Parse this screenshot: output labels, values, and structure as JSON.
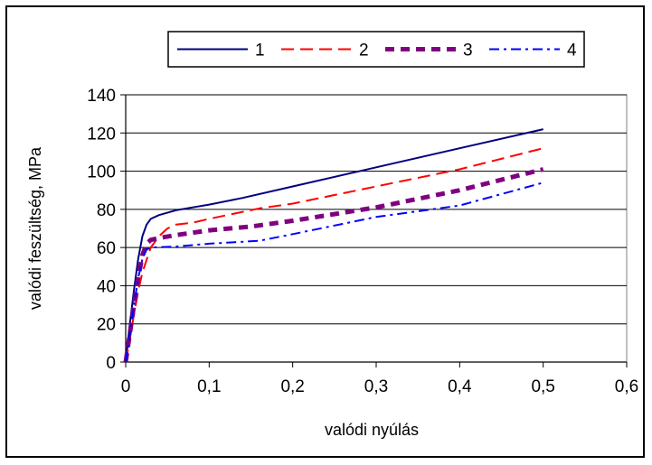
{
  "chart_data": {
    "type": "line",
    "xlabel": "valódi nyúlás",
    "ylabel": "valódi feszültség, MPa",
    "xlim": [
      0,
      0.6
    ],
    "ylim": [
      0,
      140
    ],
    "x_ticks": [
      "0",
      "0,1",
      "0,2",
      "0,3",
      "0,4",
      "0,5",
      "0,6"
    ],
    "y_ticks": [
      "0",
      "20",
      "40",
      "60",
      "80",
      "100",
      "120",
      "140"
    ],
    "grid": "horizontal",
    "legend_position": "top",
    "series": [
      {
        "name": "1",
        "color": "#000080",
        "style": "solid",
        "points": [
          [
            0,
            0
          ],
          [
            0.005,
            20
          ],
          [
            0.01,
            38
          ],
          [
            0.015,
            54
          ],
          [
            0.02,
            66
          ],
          [
            0.025,
            72
          ],
          [
            0.03,
            75
          ],
          [
            0.04,
            77
          ],
          [
            0.06,
            79.5
          ],
          [
            0.08,
            81
          ],
          [
            0.1,
            82.5
          ],
          [
            0.14,
            86
          ],
          [
            0.2,
            92
          ],
          [
            0.3,
            102
          ],
          [
            0.4,
            112
          ],
          [
            0.5,
            122
          ]
        ]
      },
      {
        "name": "2",
        "color": "#ff0000",
        "style": "dashed",
        "points": [
          [
            0,
            0
          ],
          [
            0.005,
            12
          ],
          [
            0.01,
            25
          ],
          [
            0.015,
            37
          ],
          [
            0.02,
            47
          ],
          [
            0.03,
            60
          ],
          [
            0.04,
            66
          ],
          [
            0.05,
            70
          ],
          [
            0.06,
            72
          ],
          [
            0.08,
            73
          ],
          [
            0.1,
            75
          ],
          [
            0.16,
            80.5
          ],
          [
            0.2,
            83
          ],
          [
            0.3,
            92
          ],
          [
            0.4,
            101
          ],
          [
            0.5,
            112
          ]
        ]
      },
      {
        "name": "3",
        "color": "#800080",
        "style": "thick-dashed",
        "points": [
          [
            0,
            0
          ],
          [
            0.005,
            15
          ],
          [
            0.01,
            30
          ],
          [
            0.015,
            44
          ],
          [
            0.02,
            56
          ],
          [
            0.025,
            62
          ],
          [
            0.03,
            64
          ],
          [
            0.04,
            65
          ],
          [
            0.06,
            66.5
          ],
          [
            0.1,
            69
          ],
          [
            0.15,
            71
          ],
          [
            0.2,
            74
          ],
          [
            0.3,
            81
          ],
          [
            0.4,
            90
          ],
          [
            0.5,
            101
          ]
        ]
      },
      {
        "name": "4",
        "color": "#0000ff",
        "style": "dash-dot",
        "points": [
          [
            0,
            0
          ],
          [
            0.005,
            14
          ],
          [
            0.01,
            30
          ],
          [
            0.015,
            44
          ],
          [
            0.02,
            54
          ],
          [
            0.025,
            59
          ],
          [
            0.03,
            60
          ],
          [
            0.06,
            60.5
          ],
          [
            0.1,
            62
          ],
          [
            0.16,
            63.5
          ],
          [
            0.2,
            67
          ],
          [
            0.3,
            76
          ],
          [
            0.4,
            82
          ],
          [
            0.5,
            94
          ]
        ]
      }
    ]
  }
}
